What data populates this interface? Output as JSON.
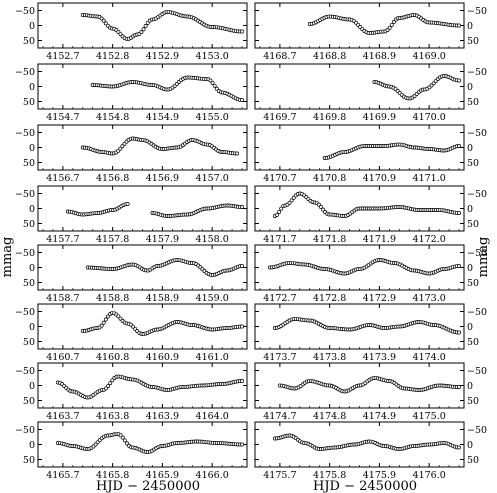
{
  "chart_data": {
    "type": "scatter",
    "xlabel": "HJD − 2450000",
    "ylabel": "mmag",
    "y_ticks": [
      -50,
      0,
      50
    ],
    "y_tick_labels": [
      "−50",
      "0",
      "50"
    ],
    "ylim": [
      -75,
      75
    ],
    "y_inverted": true,
    "panels": [
      {
        "col": 0,
        "row": 0,
        "xlim": [
          4152.65,
          4153.07
        ],
        "ticks": [
          4152.7,
          4152.8,
          4152.9,
          4153.0
        ],
        "tick_labels": [
          "4152.7",
          "4152.8",
          "4152.9",
          "4153.0"
        ],
        "t_start": 4152.74,
        "t_end": 4153.06,
        "knots": [
          [
            4152.74,
            -35
          ],
          [
            4152.77,
            -30
          ],
          [
            4152.8,
            10
          ],
          [
            4152.83,
            45
          ],
          [
            4152.85,
            30
          ],
          [
            4152.88,
            -20
          ],
          [
            4152.91,
            -45
          ],
          [
            4152.95,
            -30
          ],
          [
            4153.0,
            5
          ],
          [
            4153.06,
            20
          ]
        ]
      },
      {
        "col": 1,
        "row": 0,
        "xlim": [
          4168.65,
          4169.07
        ],
        "ticks": [
          4168.7,
          4168.8,
          4168.9,
          4169.0
        ],
        "tick_labels": [
          "4168.7",
          "4168.8",
          "4168.9",
          "4169.0"
        ],
        "t_start": 4168.76,
        "t_end": 4169.06,
        "knots": [
          [
            4168.76,
            -5
          ],
          [
            4168.8,
            -30
          ],
          [
            4168.84,
            -20
          ],
          [
            4168.88,
            25
          ],
          [
            4168.91,
            20
          ],
          [
            4168.94,
            -25
          ],
          [
            4168.97,
            -35
          ],
          [
            4169.0,
            -10
          ],
          [
            4169.06,
            0
          ]
        ]
      },
      {
        "col": 0,
        "row": 1,
        "xlim": [
          4154.65,
          4155.07
        ],
        "ticks": [
          4154.7,
          4154.8,
          4154.9,
          4155.0
        ],
        "tick_labels": [
          "4154.7",
          "4154.8",
          "4154.9",
          "4155.0"
        ],
        "t_start": 4154.76,
        "t_end": 4155.06,
        "knots": [
          [
            4154.76,
            -5
          ],
          [
            4154.8,
            0
          ],
          [
            4154.84,
            -15
          ],
          [
            4154.88,
            -5
          ],
          [
            4154.91,
            10
          ],
          [
            4154.95,
            -30
          ],
          [
            4154.99,
            -25
          ],
          [
            4155.02,
            20
          ],
          [
            4155.06,
            45
          ]
        ]
      },
      {
        "col": 1,
        "row": 1,
        "xlim": [
          4169.65,
          4170.07
        ],
        "ticks": [
          4169.7,
          4169.8,
          4169.9,
          4170.0
        ],
        "tick_labels": [
          "4169.7",
          "4169.8",
          "4169.9",
          "4170.0"
        ],
        "t_start": 4169.89,
        "t_end": 4170.06,
        "knots": [
          [
            4169.89,
            -15
          ],
          [
            4169.92,
            0
          ],
          [
            4169.96,
            40
          ],
          [
            4169.99,
            10
          ],
          [
            4170.03,
            -35
          ],
          [
            4170.06,
            -20
          ]
        ]
      },
      {
        "col": 0,
        "row": 2,
        "xlim": [
          4156.65,
          4157.07
        ],
        "ticks": [
          4156.7,
          4156.8,
          4156.9,
          4157.0
        ],
        "tick_labels": [
          "4156.7",
          "4156.8",
          "4156.9",
          "4157.0"
        ],
        "t_start": 4156.74,
        "t_end": 4157.05,
        "knots": [
          [
            4156.74,
            0
          ],
          [
            4156.78,
            15
          ],
          [
            4156.8,
            20
          ],
          [
            4156.84,
            -30
          ],
          [
            4156.86,
            -25
          ],
          [
            4156.9,
            5
          ],
          [
            4156.93,
            0
          ],
          [
            4156.96,
            -25
          ],
          [
            4156.99,
            -10
          ],
          [
            4157.02,
            15
          ],
          [
            4157.05,
            20
          ]
        ]
      },
      {
        "col": 1,
        "row": 2,
        "xlim": [
          4170.65,
          4171.07
        ],
        "ticks": [
          4170.7,
          4170.8,
          4170.9,
          4171.0
        ],
        "tick_labels": [
          "4170.7",
          "4170.8",
          "4170.9",
          "4171.0"
        ],
        "t_start": 4170.79,
        "t_end": 4171.06,
        "knots": [
          [
            4170.79,
            35
          ],
          [
            4170.83,
            15
          ],
          [
            4170.87,
            -5
          ],
          [
            4170.91,
            -5
          ],
          [
            4170.94,
            -10
          ],
          [
            4170.97,
            0
          ],
          [
            4171.0,
            5
          ],
          [
            4171.03,
            10
          ],
          [
            4171.06,
            -5
          ]
        ]
      },
      {
        "col": 0,
        "row": 3,
        "xlim": [
          4157.65,
          4158.07
        ],
        "ticks": [
          4157.7,
          4157.8,
          4157.9,
          4158.0
        ],
        "tick_labels": [
          "4157.7",
          "4157.8",
          "4157.9",
          "4158.0"
        ],
        "segments": [
          {
            "t_start": 4157.71,
            "t_end": 4157.83,
            "knots": [
              [
                4157.71,
                10
              ],
              [
                4157.74,
                20
              ],
              [
                4157.77,
                15
              ],
              [
                4157.8,
                5
              ],
              [
                4157.83,
                -15
              ]
            ]
          },
          {
            "t_start": 4157.88,
            "t_end": 4158.06,
            "knots": [
              [
                4157.88,
                15
              ],
              [
                4157.91,
                25
              ],
              [
                4157.95,
                20
              ],
              [
                4157.99,
                0
              ],
              [
                4158.03,
                -10
              ],
              [
                4158.06,
                -5
              ]
            ]
          }
        ]
      },
      {
        "col": 1,
        "row": 3,
        "xlim": [
          4171.65,
          4172.07
        ],
        "ticks": [
          4171.7,
          4171.8,
          4171.9,
          4172.0
        ],
        "tick_labels": [
          "4171.7",
          "4171.8",
          "4171.9",
          "4172.0"
        ],
        "t_start": 4171.69,
        "t_end": 4172.06,
        "knots": [
          [
            4171.69,
            25
          ],
          [
            4171.71,
            -10
          ],
          [
            4171.74,
            -50
          ],
          [
            4171.77,
            -20
          ],
          [
            4171.8,
            20
          ],
          [
            4171.83,
            25
          ],
          [
            4171.86,
            0
          ],
          [
            4171.9,
            0
          ],
          [
            4171.94,
            -5
          ],
          [
            4171.98,
            5
          ],
          [
            4172.02,
            5
          ],
          [
            4172.06,
            15
          ]
        ]
      },
      {
        "col": 0,
        "row": 4,
        "xlim": [
          4158.65,
          4159.07
        ],
        "ticks": [
          4158.7,
          4158.8,
          4158.9,
          4159.0
        ],
        "tick_labels": [
          "4158.7",
          "4158.8",
          "4158.9",
          "4159.0"
        ],
        "t_start": 4158.75,
        "t_end": 4159.06,
        "knots": [
          [
            4158.75,
            0
          ],
          [
            4158.8,
            5
          ],
          [
            4158.84,
            -10
          ],
          [
            4158.87,
            10
          ],
          [
            4158.89,
            -5
          ],
          [
            4158.93,
            -25
          ],
          [
            4158.96,
            -15
          ],
          [
            4159.0,
            25
          ],
          [
            4159.03,
            10
          ],
          [
            4159.06,
            -5
          ]
        ]
      },
      {
        "col": 1,
        "row": 4,
        "xlim": [
          4172.65,
          4173.07
        ],
        "ticks": [
          4172.7,
          4172.8,
          4172.9,
          4173.0
        ],
        "tick_labels": [
          "4172.7",
          "4172.8",
          "4172.9",
          "4173.0"
        ],
        "t_start": 4172.68,
        "t_end": 4173.06,
        "knots": [
          [
            4172.68,
            0
          ],
          [
            4172.72,
            -15
          ],
          [
            4172.75,
            -10
          ],
          [
            4172.79,
            5
          ],
          [
            4172.83,
            20
          ],
          [
            4172.86,
            5
          ],
          [
            4172.9,
            -25
          ],
          [
            4172.93,
            -15
          ],
          [
            4172.97,
            10
          ],
          [
            4173.0,
            20
          ],
          [
            4173.03,
            5
          ],
          [
            4173.06,
            -5
          ]
        ]
      },
      {
        "col": 0,
        "row": 5,
        "xlim": [
          4160.65,
          4161.07
        ],
        "ticks": [
          4160.7,
          4160.8,
          4160.9,
          4161.0
        ],
        "tick_labels": [
          "4160.7",
          "4160.8",
          "4160.9",
          "4161.0"
        ],
        "t_start": 4160.74,
        "t_end": 4161.06,
        "knots": [
          [
            4160.74,
            15
          ],
          [
            4160.77,
            5
          ],
          [
            4160.8,
            -45
          ],
          [
            4160.83,
            -10
          ],
          [
            4160.86,
            25
          ],
          [
            4160.89,
            10
          ],
          [
            4160.93,
            -15
          ],
          [
            4160.96,
            -5
          ],
          [
            4161.0,
            10
          ],
          [
            4161.03,
            5
          ],
          [
            4161.06,
            0
          ]
        ]
      },
      {
        "col": 1,
        "row": 5,
        "xlim": [
          4173.65,
          4174.07
        ],
        "ticks": [
          4173.7,
          4173.8,
          4173.9,
          4174.0
        ],
        "tick_labels": [
          "4173.7",
          "4173.8",
          "4173.9",
          "4174.0"
        ],
        "t_start": 4173.69,
        "t_end": 4174.06,
        "knots": [
          [
            4173.69,
            5
          ],
          [
            4173.73,
            -25
          ],
          [
            4173.76,
            -20
          ],
          [
            4173.8,
            5
          ],
          [
            4173.84,
            10
          ],
          [
            4173.88,
            -5
          ],
          [
            4173.91,
            5
          ],
          [
            4173.94,
            0
          ],
          [
            4173.98,
            -15
          ],
          [
            4174.01,
            -5
          ],
          [
            4174.06,
            20
          ]
        ]
      },
      {
        "col": 0,
        "row": 6,
        "xlim": [
          4163.65,
          4164.07
        ],
        "ticks": [
          4163.7,
          4163.8,
          4163.9,
          4164.0
        ],
        "tick_labels": [
          "4163.7",
          "4163.8",
          "4163.9",
          "4164.0"
        ],
        "t_start": 4163.69,
        "t_end": 4164.06,
        "knots": [
          [
            4163.69,
            -10
          ],
          [
            4163.72,
            20
          ],
          [
            4163.75,
            40
          ],
          [
            4163.78,
            15
          ],
          [
            4163.81,
            -30
          ],
          [
            4163.84,
            -20
          ],
          [
            4163.88,
            5
          ],
          [
            4163.91,
            15
          ],
          [
            4163.94,
            5
          ],
          [
            4163.98,
            0
          ],
          [
            4164.02,
            -5
          ],
          [
            4164.06,
            -15
          ]
        ]
      },
      {
        "col": 1,
        "row": 6,
        "xlim": [
          4174.65,
          4175.07
        ],
        "ticks": [
          4174.7,
          4174.8,
          4174.9,
          4175.0
        ],
        "tick_labels": [
          "4174.7",
          "4174.8",
          "4174.9",
          "4175.0"
        ],
        "t_start": 4174.7,
        "t_end": 4175.06,
        "knots": [
          [
            4174.7,
            0
          ],
          [
            4174.73,
            10
          ],
          [
            4174.76,
            -15
          ],
          [
            4174.8,
            0
          ],
          [
            4174.83,
            20
          ],
          [
            4174.86,
            0
          ],
          [
            4174.89,
            -25
          ],
          [
            4174.92,
            -15
          ],
          [
            4174.95,
            10
          ],
          [
            4174.98,
            15
          ],
          [
            4175.02,
            0
          ],
          [
            4175.06,
            5
          ]
        ]
      },
      {
        "col": 0,
        "row": 7,
        "xlim": [
          4165.65,
          4166.07
        ],
        "ticks": [
          4165.7,
          4165.8,
          4165.9,
          4166.0
        ],
        "tick_labels": [
          "4165.7",
          "4165.8",
          "4165.9",
          "4166.0"
        ],
        "t_start": 4165.69,
        "t_end": 4166.06,
        "knots": [
          [
            4165.69,
            -5
          ],
          [
            4165.72,
            5
          ],
          [
            4165.75,
            15
          ],
          [
            4165.79,
            -30
          ],
          [
            4165.81,
            -35
          ],
          [
            4165.84,
            10
          ],
          [
            4165.87,
            25
          ],
          [
            4165.9,
            5
          ],
          [
            4165.93,
            -5
          ],
          [
            4165.97,
            -10
          ],
          [
            4166.01,
            -5
          ],
          [
            4166.06,
            0
          ]
        ]
      },
      {
        "col": 1,
        "row": 7,
        "xlim": [
          4175.65,
          4176.07
        ],
        "ticks": [
          4175.7,
          4175.8,
          4175.9,
          4176.0
        ],
        "tick_labels": [
          "4175.7",
          "4175.8",
          "4175.9",
          "4176.0"
        ],
        "t_start": 4175.69,
        "t_end": 4176.06,
        "knots": [
          [
            4175.69,
            -20
          ],
          [
            4175.72,
            -30
          ],
          [
            4175.75,
            -5
          ],
          [
            4175.78,
            15
          ],
          [
            4175.81,
            10
          ],
          [
            4175.85,
            0
          ],
          [
            4175.88,
            -10
          ],
          [
            4175.91,
            5
          ],
          [
            4175.94,
            15
          ],
          [
            4175.97,
            5
          ],
          [
            4176.0,
            0
          ],
          [
            4176.03,
            -5
          ],
          [
            4176.06,
            10
          ]
        ]
      }
    ]
  }
}
